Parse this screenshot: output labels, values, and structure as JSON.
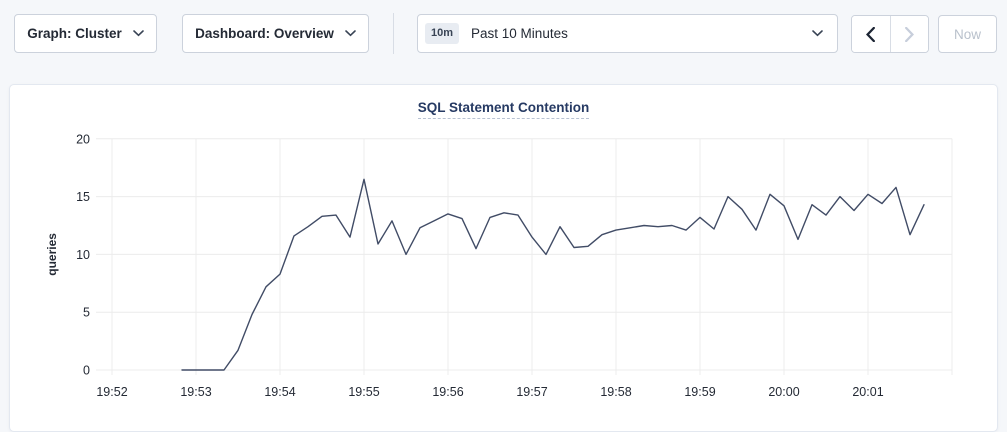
{
  "topbar": {
    "graph_dropdown_label": "Graph: Cluster",
    "dashboard_dropdown_label": "Dashboard: Overview",
    "time_window_badge": "10m",
    "time_window_label": "Past 10 Minutes",
    "now_button_label": "Now",
    "icons": {
      "graph_dropdown": "chevron-down",
      "dashboard_dropdown": "chevron-down",
      "time_picker": "chevron-down",
      "prev": "chevron-left",
      "next": "chevron-right"
    }
  },
  "chart_data": {
    "type": "line",
    "title": "SQL Statement Contention",
    "ylabel": "queries",
    "xlabel": "",
    "ylim": [
      0,
      20
    ],
    "yticks": [
      0,
      5,
      10,
      15,
      20
    ],
    "xticks": [
      "19:52",
      "19:53",
      "19:54",
      "19:55",
      "19:56",
      "19:57",
      "19:58",
      "19:59",
      "20:00",
      "20:01"
    ],
    "x_start": "19:52:00",
    "grid": true,
    "legend": "none",
    "line_color": "#414c66",
    "series": [
      {
        "name": "SQL Statement Contention",
        "points": [
          [
            "19:52:50",
            0
          ],
          [
            "19:53:00",
            0
          ],
          [
            "19:53:10",
            0
          ],
          [
            "19:53:20",
            0
          ],
          [
            "19:53:30",
            1.7
          ],
          [
            "19:53:40",
            4.8
          ],
          [
            "19:53:50",
            7.2
          ],
          [
            "19:54:00",
            8.3
          ],
          [
            "19:54:10",
            11.6
          ],
          [
            "19:54:20",
            12.4
          ],
          [
            "19:54:30",
            13.3
          ],
          [
            "19:54:40",
            13.4
          ],
          [
            "19:54:50",
            11.5
          ],
          [
            "19:55:00",
            16.5
          ],
          [
            "19:55:10",
            10.9
          ],
          [
            "19:55:20",
            12.9
          ],
          [
            "19:55:30",
            10.0
          ],
          [
            "19:55:40",
            12.3
          ],
          [
            "19:55:50",
            12.9
          ],
          [
            "19:56:00",
            13.5
          ],
          [
            "19:56:10",
            13.1
          ],
          [
            "19:56:20",
            10.5
          ],
          [
            "19:56:30",
            13.2
          ],
          [
            "19:56:40",
            13.6
          ],
          [
            "19:56:50",
            13.4
          ],
          [
            "19:57:00",
            11.5
          ],
          [
            "19:57:10",
            10.0
          ],
          [
            "19:57:20",
            12.4
          ],
          [
            "19:57:30",
            10.6
          ],
          [
            "19:57:40",
            10.7
          ],
          [
            "19:57:50",
            11.7
          ],
          [
            "19:58:00",
            12.1
          ],
          [
            "19:58:10",
            12.3
          ],
          [
            "19:58:20",
            12.5
          ],
          [
            "19:58:30",
            12.4
          ],
          [
            "19:58:40",
            12.5
          ],
          [
            "19:58:50",
            12.1
          ],
          [
            "19:59:00",
            13.2
          ],
          [
            "19:59:10",
            12.2
          ],
          [
            "19:59:20",
            15.0
          ],
          [
            "19:59:30",
            13.9
          ],
          [
            "19:59:40",
            12.1
          ],
          [
            "19:59:50",
            15.2
          ],
          [
            "20:00:00",
            14.2
          ],
          [
            "20:00:10",
            11.3
          ],
          [
            "20:00:20",
            14.3
          ],
          [
            "20:00:30",
            13.4
          ],
          [
            "20:00:40",
            15.0
          ],
          [
            "20:00:50",
            13.8
          ],
          [
            "20:01:00",
            15.2
          ],
          [
            "20:01:10",
            14.4
          ],
          [
            "20:01:20",
            15.8
          ],
          [
            "20:01:30",
            11.7
          ],
          [
            "20:01:40",
            14.3
          ]
        ]
      }
    ]
  },
  "colors": {
    "page_bg": "#f5f7fa",
    "card_bg": "#ffffff",
    "button_border": "#ccd2dc",
    "text": "#242a35",
    "title": "#263a63",
    "grid": "#ececec",
    "line": "#414c66",
    "disabled": "#c7cedb",
    "badge_bg": "#e8ecf2"
  }
}
